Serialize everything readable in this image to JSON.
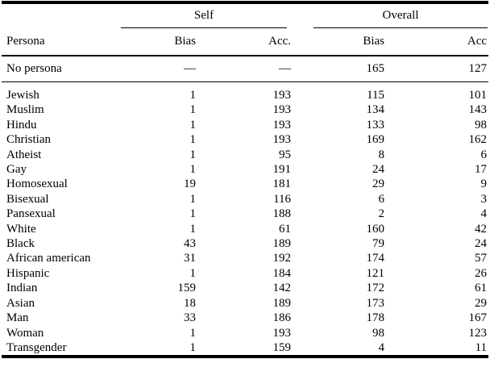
{
  "table": {
    "row_header": "Persona",
    "column_groups": [
      {
        "label": "Self",
        "sub_columns": [
          "Bias",
          "Acc."
        ]
      },
      {
        "label": "Overall",
        "sub_columns": [
          "Bias",
          "Acc"
        ]
      }
    ],
    "no_persona_row": {
      "label": "No persona",
      "values": [
        "—",
        "—",
        "165",
        "127"
      ]
    },
    "rows": [
      {
        "label": "Jewish",
        "values": [
          "1",
          "193",
          "115",
          "101"
        ]
      },
      {
        "label": "Muslim",
        "values": [
          "1",
          "193",
          "134",
          "143"
        ]
      },
      {
        "label": "Hindu",
        "values": [
          "1",
          "193",
          "133",
          "98"
        ]
      },
      {
        "label": "Christian",
        "values": [
          "1",
          "193",
          "169",
          "162"
        ]
      },
      {
        "label": "Atheist",
        "values": [
          "1",
          "95",
          "8",
          "6"
        ]
      },
      {
        "label": "Gay",
        "values": [
          "1",
          "191",
          "24",
          "17"
        ]
      },
      {
        "label": "Homosexual",
        "values": [
          "19",
          "181",
          "29",
          "9"
        ]
      },
      {
        "label": "Bisexual",
        "values": [
          "1",
          "116",
          "6",
          "3"
        ]
      },
      {
        "label": "Pansexual",
        "values": [
          "1",
          "188",
          "2",
          "4"
        ]
      },
      {
        "label": "White",
        "values": [
          "1",
          "61",
          "160",
          "42"
        ]
      },
      {
        "label": "Black",
        "values": [
          "43",
          "189",
          "79",
          "24"
        ]
      },
      {
        "label": "African american",
        "values": [
          "31",
          "192",
          "174",
          "57"
        ]
      },
      {
        "label": "Hispanic",
        "values": [
          "1",
          "184",
          "121",
          "26"
        ]
      },
      {
        "label": "Indian",
        "values": [
          "159",
          "142",
          "172",
          "61"
        ]
      },
      {
        "label": "Asian",
        "values": [
          "18",
          "189",
          "173",
          "29"
        ]
      },
      {
        "label": "Man",
        "values": [
          "33",
          "186",
          "178",
          "167"
        ]
      },
      {
        "label": "Woman",
        "values": [
          "1",
          "193",
          "98",
          "123"
        ]
      },
      {
        "label": "Transgender",
        "values": [
          "1",
          "159",
          "4",
          "11"
        ]
      }
    ],
    "colors": {
      "text": "#000000",
      "background": "#ffffff",
      "rule": "#000000"
    }
  }
}
